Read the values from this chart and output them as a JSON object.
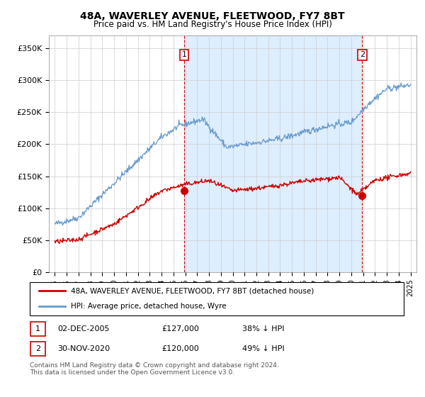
{
  "title": "48A, WAVERLEY AVENUE, FLEETWOOD, FY7 8BT",
  "subtitle": "Price paid vs. HM Land Registry's House Price Index (HPI)",
  "legend_line1": "48A, WAVERLEY AVENUE, FLEETWOOD, FY7 8BT (detached house)",
  "legend_line2": "HPI: Average price, detached house, Wyre",
  "annotation1": {
    "num": "1",
    "date": "02-DEC-2005",
    "price": "£127,000",
    "pct": "38% ↓ HPI"
  },
  "annotation2": {
    "num": "2",
    "date": "30-NOV-2020",
    "price": "£120,000",
    "pct": "49% ↓ HPI"
  },
  "footer": "Contains HM Land Registry data © Crown copyright and database right 2024.\nThis data is licensed under the Open Government Licence v3.0.",
  "price_line_color": "#cc0000",
  "hpi_line_color": "#6699cc",
  "shade_color": "#ddeeff",
  "vline_color": "#cc0000",
  "ylim": [
    0,
    370000
  ],
  "yticks": [
    0,
    50000,
    100000,
    150000,
    200000,
    250000,
    300000,
    350000
  ],
  "ytick_labels": [
    "£0",
    "£50K",
    "£100K",
    "£150K",
    "£200K",
    "£250K",
    "£300K",
    "£350K"
  ],
  "purchase1_x": 2005.92,
  "purchase1_y": 127000,
  "purchase2_x": 2020.92,
  "purchase2_y": 120000,
  "xmin": 1994.5,
  "xmax": 2025.5
}
